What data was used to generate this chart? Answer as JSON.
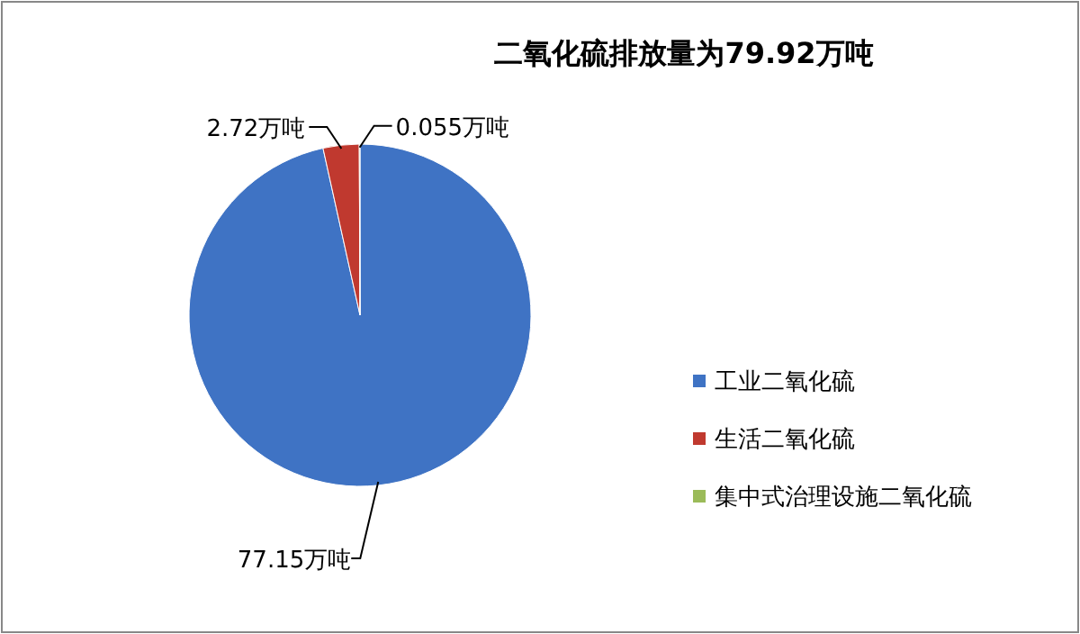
{
  "chart_data": {
    "type": "pie",
    "title": "二氧化硫排放量为79.92万吨",
    "categories": [
      "工业二氧化硫",
      "生活二氧化硫",
      "集中式治理设施二氧化硫"
    ],
    "values": [
      77.15,
      2.72,
      0.055
    ],
    "colors": [
      "#3f73c4",
      "#c0392f",
      "#9bbb59"
    ],
    "value_labels": [
      "77.15万吨",
      "2.72万吨",
      "0.055万吨"
    ],
    "legend": "right"
  }
}
